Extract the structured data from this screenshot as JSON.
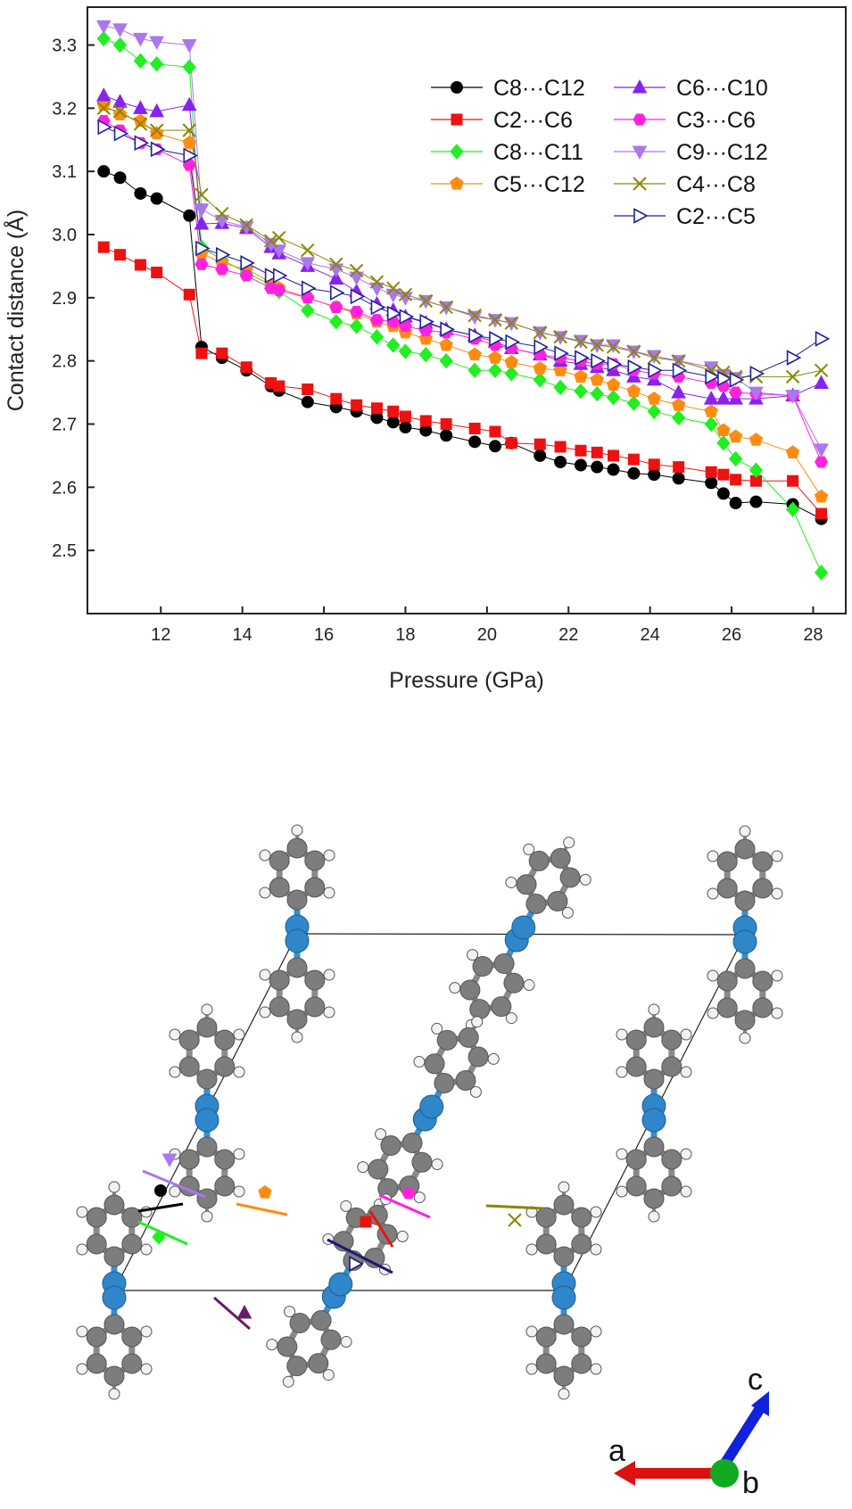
{
  "chart_data": {
    "type": "line",
    "xlabel": "Pressure (GPa)",
    "ylabel": "Contact distance (Å)",
    "xlim": [
      10.2,
      28.8
    ],
    "ylim": [
      2.4,
      3.36
    ],
    "xticks": [
      12,
      14,
      16,
      18,
      20,
      22,
      24,
      26,
      28
    ],
    "yticks": [
      2.5,
      2.6,
      2.7,
      2.8,
      2.9,
      3.0,
      3.1,
      3.2,
      3.3
    ],
    "xtick_labels": [
      "12",
      "14",
      "16",
      "18",
      "20",
      "22",
      "24",
      "26",
      "28"
    ],
    "ytick_labels": [
      "2.5",
      "2.6",
      "2.7",
      "2.8",
      "2.9",
      "3.0",
      "3.1",
      "3.2",
      "3.3"
    ],
    "legend_position": "top-right",
    "grid": false,
    "x": [
      10.6,
      11.0,
      11.5,
      11.9,
      12.7,
      13.0,
      13.5,
      14.1,
      14.7,
      14.9,
      15.6,
      16.3,
      16.8,
      17.3,
      17.7,
      18.0,
      18.5,
      19.0,
      19.7,
      20.2,
      20.6,
      21.3,
      21.8,
      22.3,
      22.7,
      23.1,
      23.6,
      24.1,
      24.7,
      25.5,
      25.8,
      26.1,
      26.6,
      27.5,
      28.2
    ],
    "series": [
      {
        "name": "C8···C12",
        "color": "#000000",
        "marker": "circle",
        "filled": true,
        "values": [
          3.1,
          3.09,
          3.065,
          3.057,
          3.03,
          2.822,
          2.805,
          2.785,
          2.76,
          2.753,
          2.735,
          2.727,
          2.72,
          2.71,
          2.703,
          2.695,
          2.69,
          2.682,
          2.672,
          2.665,
          2.67,
          2.65,
          2.64,
          2.635,
          2.632,
          2.628,
          2.622,
          2.62,
          2.614,
          2.607,
          2.59,
          2.575,
          2.577,
          2.573,
          2.55
        ]
      },
      {
        "name": "C2···C6",
        "color": "#ee1111",
        "marker": "square",
        "filled": true,
        "values": [
          2.98,
          2.968,
          2.952,
          2.94,
          2.905,
          2.812,
          2.812,
          2.79,
          2.765,
          2.76,
          2.755,
          2.74,
          2.73,
          2.725,
          2.72,
          2.712,
          2.705,
          2.7,
          2.693,
          2.688,
          2.67,
          2.668,
          2.664,
          2.658,
          2.655,
          2.65,
          2.644,
          2.636,
          2.632,
          2.624,
          2.62,
          2.612,
          2.61,
          2.61,
          2.558
        ]
      },
      {
        "name": "C8···C11",
        "color": "#22ee22",
        "marker": "diamond",
        "filled": true,
        "values": [
          3.31,
          3.3,
          3.275,
          3.27,
          3.265,
          2.98,
          2.96,
          2.94,
          2.92,
          2.91,
          2.88,
          2.862,
          2.855,
          2.838,
          2.825,
          2.815,
          2.81,
          2.8,
          2.785,
          2.785,
          2.78,
          2.77,
          2.758,
          2.752,
          2.748,
          2.742,
          2.733,
          2.72,
          2.71,
          2.7,
          2.67,
          2.645,
          2.627,
          2.565,
          2.465
        ]
      },
      {
        "name": "C5···C12",
        "color": "#ff8c11",
        "marker": "pentagon",
        "filled": true,
        "values": [
          3.205,
          3.19,
          3.18,
          3.16,
          3.145,
          2.97,
          2.955,
          2.945,
          2.925,
          2.915,
          2.9,
          2.885,
          2.875,
          2.862,
          2.855,
          2.845,
          2.835,
          2.825,
          2.81,
          2.805,
          2.798,
          2.788,
          2.785,
          2.775,
          2.77,
          2.762,
          2.752,
          2.74,
          2.73,
          2.72,
          2.69,
          2.68,
          2.675,
          2.655,
          2.585
        ]
      },
      {
        "name": "C6···C10",
        "color": "#8822ee",
        "marker": "triangle-up",
        "filled": true,
        "values": [
          3.22,
          3.21,
          3.2,
          3.195,
          3.205,
          3.017,
          3.018,
          3.01,
          2.98,
          2.97,
          2.95,
          2.93,
          2.91,
          2.89,
          2.88,
          2.87,
          2.86,
          2.85,
          2.84,
          2.83,
          2.82,
          2.81,
          2.8,
          2.795,
          2.79,
          2.785,
          2.775,
          2.77,
          2.75,
          2.74,
          2.74,
          2.74,
          2.74,
          2.745,
          2.765
        ]
      },
      {
        "name": "C3···C6",
        "color": "#ff22dd",
        "marker": "hexagon",
        "filled": true,
        "values": [
          3.18,
          3.165,
          3.145,
          3.135,
          3.11,
          2.953,
          2.945,
          2.935,
          2.915,
          2.912,
          2.9,
          2.885,
          2.878,
          2.865,
          2.862,
          2.855,
          2.848,
          2.845,
          2.835,
          2.825,
          2.82,
          2.81,
          2.805,
          2.8,
          2.795,
          2.795,
          2.785,
          2.78,
          2.775,
          2.765,
          2.76,
          2.75,
          2.748,
          2.745,
          2.64
        ]
      },
      {
        "name": "C9···C12",
        "color": "#aa77ee",
        "marker": "triangle-down",
        "filled": true,
        "values": [
          3.33,
          3.325,
          3.31,
          3.305,
          3.3,
          3.04,
          3.022,
          3.012,
          2.985,
          2.975,
          2.955,
          2.945,
          2.932,
          2.915,
          2.905,
          2.9,
          2.895,
          2.885,
          2.87,
          2.865,
          2.86,
          2.845,
          2.838,
          2.832,
          2.825,
          2.825,
          2.815,
          2.808,
          2.8,
          2.79,
          2.778,
          2.773,
          2.75,
          2.745,
          2.66
        ]
      },
      {
        "name": "C4···C8",
        "color": "#888800",
        "marker": "x",
        "filled": false,
        "values": [
          3.2,
          3.195,
          3.175,
          3.165,
          3.165,
          3.063,
          3.033,
          3.015,
          2.99,
          2.995,
          2.975,
          2.953,
          2.943,
          2.925,
          2.915,
          2.905,
          2.895,
          2.885,
          2.872,
          2.865,
          2.86,
          2.845,
          2.838,
          2.83,
          2.825,
          2.822,
          2.815,
          2.805,
          2.8,
          2.785,
          2.782,
          2.775,
          2.775,
          2.775,
          2.785
        ]
      },
      {
        "name": "C2···C5",
        "color": "#222299",
        "marker": "triangle-right",
        "filled": false,
        "values": [
          3.17,
          3.16,
          3.145,
          3.135,
          3.125,
          2.978,
          2.968,
          2.955,
          2.935,
          2.935,
          2.915,
          2.908,
          2.902,
          2.885,
          2.875,
          2.87,
          2.862,
          2.85,
          2.84,
          2.835,
          2.83,
          2.822,
          2.812,
          2.805,
          2.8,
          2.795,
          2.79,
          2.785,
          2.785,
          2.775,
          2.772,
          2.77,
          2.78,
          2.805,
          2.835
        ]
      }
    ]
  },
  "structure": {
    "axis_labels": {
      "a": "a",
      "b": "b",
      "c": "c"
    },
    "colors": {
      "carbon": "#7d7d7d",
      "nitrogen": "#2f86c8",
      "hydrogen": "#f2f2f2",
      "bond": "#8a8a8a",
      "nbond": "#3a8fcf",
      "cell": "#222222",
      "axis_a": "#dd1111",
      "axis_b": "#11aa22",
      "axis_c": "#1122dd"
    }
  }
}
